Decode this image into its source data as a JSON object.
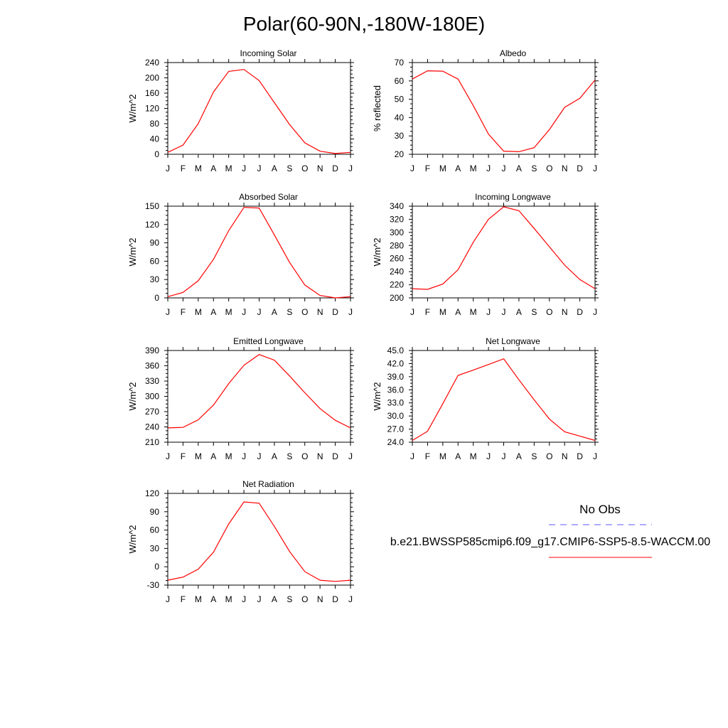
{
  "title": "Polar(60-90N,-180W-180E)",
  "colors": {
    "model_line": "#ff0000",
    "obs_line": "#5a5aff",
    "axis": "#000000"
  },
  "legend": {
    "obs_label": "No Obs",
    "model_label": "b.e21.BWSSP585cmip6.f09_g17.CMIP6-SSP5-8.5-WACCM.00"
  },
  "chart_data": [
    {
      "type": "line",
      "title": "Incoming Solar",
      "ylabel": "W/m^2",
      "xlabel": "",
      "categories": [
        "J",
        "F",
        "M",
        "A",
        "M",
        "J",
        "J",
        "A",
        "S",
        "O",
        "N",
        "D",
        "J"
      ],
      "ylim": [
        0,
        240
      ],
      "yticks": [
        "0",
        "40",
        "80",
        "120",
        "160",
        "200",
        "240"
      ],
      "series": [
        {
          "name": "b.e21.BWSSP585cmip6.f09_g17.CMIP6-SSP5-8.5-WACCM.00",
          "values": [
            5,
            24,
            80,
            163,
            217,
            222,
            193,
            135,
            78,
            30,
            8,
            2,
            5
          ]
        }
      ]
    },
    {
      "type": "line",
      "title": "Albedo",
      "ylabel": "% reflected",
      "xlabel": "",
      "categories": [
        "J",
        "F",
        "M",
        "A",
        "M",
        "J",
        "J",
        "A",
        "S",
        "O",
        "N",
        "D",
        "J"
      ],
      "ylim": [
        20,
        70
      ],
      "yticks": [
        "20",
        "30",
        "40",
        "50",
        "60",
        "70"
      ],
      "series": [
        {
          "name": "b.e21.BWSSP585cmip6.f09_g17.CMIP6-SSP5-8.5-WACCM.00",
          "values": [
            61,
            65.5,
            65.3,
            61,
            46.5,
            31,
            21.7,
            21.4,
            23.6,
            33.5,
            45.6,
            50.5,
            60.5
          ]
        }
      ]
    },
    {
      "type": "line",
      "title": "Absorbed Solar",
      "ylabel": "W/m^2",
      "xlabel": "",
      "categories": [
        "J",
        "F",
        "M",
        "A",
        "M",
        "J",
        "J",
        "A",
        "S",
        "O",
        "N",
        "D",
        "J"
      ],
      "ylim": [
        0,
        150
      ],
      "yticks": [
        "0",
        "30",
        "60",
        "90",
        "120",
        "150"
      ],
      "series": [
        {
          "name": "b.e21.BWSSP585cmip6.f09_g17.CMIP6-SSP5-8.5-WACCM.00",
          "values": [
            2,
            9,
            28,
            63,
            110,
            148,
            147,
            103,
            58,
            21,
            4,
            0,
            2
          ]
        }
      ]
    },
    {
      "type": "line",
      "title": "Incoming Longwave",
      "ylabel": "W/m^2",
      "xlabel": "",
      "categories": [
        "J",
        "F",
        "M",
        "A",
        "M",
        "J",
        "J",
        "A",
        "S",
        "O",
        "N",
        "D",
        "J"
      ],
      "ylim": [
        200,
        340
      ],
      "yticks": [
        "200",
        "220",
        "240",
        "260",
        "280",
        "300",
        "320",
        "340"
      ],
      "series": [
        {
          "name": "b.e21.BWSSP585cmip6.f09_g17.CMIP6-SSP5-8.5-WACCM.00",
          "values": [
            214,
            213,
            221,
            243,
            285,
            320,
            339,
            333,
            306,
            278,
            250,
            228,
            214
          ]
        }
      ]
    },
    {
      "type": "line",
      "title": "Emitted Longwave",
      "ylabel": "W/m^2",
      "xlabel": "",
      "categories": [
        "J",
        "F",
        "M",
        "A",
        "M",
        "J",
        "J",
        "A",
        "S",
        "O",
        "N",
        "D",
        "J"
      ],
      "ylim": [
        210,
        390
      ],
      "yticks": [
        "210",
        "240",
        "270",
        "300",
        "330",
        "360",
        "390"
      ],
      "series": [
        {
          "name": "b.e21.BWSSP585cmip6.f09_g17.CMIP6-SSP5-8.5-WACCM.00",
          "values": [
            238,
            239,
            254,
            283,
            325,
            361,
            382,
            371,
            340,
            307,
            276,
            253,
            238
          ]
        }
      ]
    },
    {
      "type": "line",
      "title": "Net Longwave",
      "ylabel": "W/m^2",
      "xlabel": "",
      "categories": [
        "J",
        "F",
        "M",
        "A",
        "M",
        "J",
        "J",
        "A",
        "S",
        "O",
        "N",
        "D",
        "J"
      ],
      "ylim": [
        24,
        45
      ],
      "yticks": [
        "24.0",
        "27.0",
        "30.0",
        "33.0",
        "36.0",
        "39.0",
        "42.0",
        "45.0"
      ],
      "series": [
        {
          "name": "b.e21.BWSSP585cmip6.f09_g17.CMIP6-SSP5-8.5-WACCM.00",
          "values": [
            24.4,
            26.5,
            32.8,
            39.3,
            40.5,
            41.8,
            43.1,
            38.3,
            33.7,
            29.3,
            26.4,
            25.4,
            24.4
          ]
        }
      ]
    },
    {
      "type": "line",
      "title": "Net Radiation",
      "ylabel": "W/m^2",
      "xlabel": "",
      "categories": [
        "J",
        "F",
        "M",
        "A",
        "M",
        "J",
        "J",
        "A",
        "S",
        "O",
        "N",
        "D",
        "J"
      ],
      "ylim": [
        -30,
        120
      ],
      "yticks": [
        "-30",
        "0",
        "30",
        "60",
        "90",
        "120"
      ],
      "series": [
        {
          "name": "b.e21.BWSSP585cmip6.f09_g17.CMIP6-SSP5-8.5-WACCM.00",
          "values": [
            -22,
            -17,
            -4,
            24,
            70,
            106,
            104,
            66,
            25,
            -8,
            -22,
            -24,
            -22
          ]
        }
      ]
    }
  ]
}
